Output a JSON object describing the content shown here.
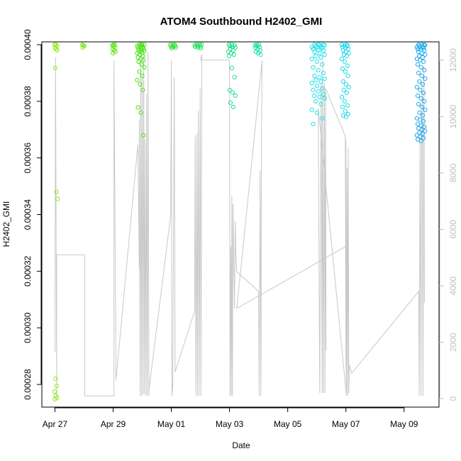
{
  "chart_data": {
    "type": "scatter",
    "title": "ATOM4 Southbound H2402_GMI",
    "xlabel": "Date",
    "ylabel": "H2402_GMI",
    "x_ticks": [
      {
        "day": 0,
        "label": "Apr 27"
      },
      {
        "day": 2,
        "label": "Apr 29"
      },
      {
        "day": 4,
        "label": "May 01"
      },
      {
        "day": 6,
        "label": "May 03"
      },
      {
        "day": 8,
        "label": "May 05"
      },
      {
        "day": 10,
        "label": "May 07"
      },
      {
        "day": 12,
        "label": "May 09"
      }
    ],
    "xlim_days": [
      -0.45,
      13.2
    ],
    "y_ticks": [
      "0.00028",
      "0.00030",
      "0.00032",
      "0.00034",
      "0.00036",
      "0.00038",
      "0.00040"
    ],
    "ylim": [
      0.000272,
      0.000401
    ],
    "y2_ticks": [
      "0",
      "2000",
      "4000",
      "6000",
      "8000",
      "10000",
      "12000"
    ],
    "y2lim": [
      -300,
      12650
    ],
    "y2_color": "#bfbfbf",
    "line_color": "#c8c8c8",
    "grid": false,
    "clusters": [
      {
        "day": 0.04,
        "spread": 0.05,
        "color": "#8fe81c",
        "values": [
          0.0004,
          0.0004,
          0.0003995,
          0.000399,
          0.0003985,
          0.000398,
          0.0003918,
          0.000348,
          0.0003455,
          0.000282,
          0.0002795,
          0.0002775,
          0.000276,
          0.0002752,
          0.0002748
        ]
      },
      {
        "day": 0.97,
        "spread": 0.04,
        "color": "#7ee41b",
        "values": [
          0.0004,
          0.0003998,
          0.0003995,
          0.000399
        ]
      },
      {
        "day": 2.02,
        "spread": 0.06,
        "color": "#66e41a",
        "values": [
          0.0004,
          0.0004,
          0.0003998,
          0.0003995,
          0.000399,
          0.0003985,
          0.000398,
          0.0003975,
          0.000397
        ]
      },
      {
        "day": 2.95,
        "spread": 0.12,
        "color": "#4fe21a",
        "values": [
          0.0004,
          0.0004,
          0.0004,
          0.0003998,
          0.0003996,
          0.0003994,
          0.0003992,
          0.000399,
          0.0003988,
          0.0003985,
          0.0003982,
          0.000398,
          0.0003978,
          0.0003975,
          0.0003972,
          0.000397,
          0.0003965,
          0.000396,
          0.0003955,
          0.000395,
          0.0003945,
          0.000394,
          0.000393,
          0.000392,
          0.0003905,
          0.000389,
          0.0003875,
          0.000386,
          0.000384,
          0.0003778,
          0.000376,
          0.000368
        ]
      },
      {
        "day": 4.05,
        "spread": 0.1,
        "color": "#2ee43a",
        "values": [
          0.0004,
          0.0004,
          0.0003998,
          0.0003996,
          0.0003994,
          0.0003992,
          0.000399,
          0.0003988
        ]
      },
      {
        "day": 4.92,
        "spread": 0.12,
        "color": "#22e45a",
        "values": [
          0.0004,
          0.0004,
          0.0004,
          0.0003998,
          0.0003996,
          0.0003994,
          0.0003992,
          0.000399,
          0.0003988
        ]
      },
      {
        "day": 6.08,
        "spread": 0.12,
        "color": "#1fe08e",
        "values": [
          0.0004,
          0.0004,
          0.0003998,
          0.0003995,
          0.0003992,
          0.000399,
          0.0003985,
          0.000398,
          0.0003975,
          0.000397,
          0.0003965,
          0.000396,
          0.0003918,
          0.0003885,
          0.000384,
          0.0003832,
          0.000382,
          0.0003795,
          0.000378
        ]
      },
      {
        "day": 6.97,
        "spread": 0.1,
        "color": "#1fe0b0",
        "values": [
          0.0004,
          0.0004,
          0.0003998,
          0.0003995,
          0.0003992,
          0.000399,
          0.0003985,
          0.000398,
          0.0003975,
          0.000397,
          0.0003965
        ]
      },
      {
        "day": 9.05,
        "spread": 0.22,
        "color": "#20e0e8",
        "values": [
          0.0004,
          0.0004,
          0.0004,
          0.0004,
          0.0003998,
          0.0003996,
          0.0003994,
          0.0003992,
          0.000399,
          0.0003988,
          0.0003985,
          0.0003982,
          0.000398,
          0.0003975,
          0.000397,
          0.0003965,
          0.000396,
          0.0003955,
          0.000395,
          0.000394,
          0.000393,
          0.000392,
          0.000391,
          0.00039,
          0.000389,
          0.0003885,
          0.000388,
          0.0003875,
          0.000387,
          0.0003865,
          0.0003855,
          0.0003845,
          0.000384,
          0.0003835,
          0.0003825,
          0.000382,
          0.0003815,
          0.000381,
          0.00038,
          0.000379,
          0.000377,
          0.000376,
          0.000374,
          0.000372
        ]
      },
      {
        "day": 9.98,
        "spread": 0.12,
        "color": "#20d8ec",
        "values": [
          0.0004,
          0.0004,
          0.0003998,
          0.0003995,
          0.0003992,
          0.000399,
          0.0003985,
          0.000398,
          0.0003975,
          0.000397,
          0.0003965,
          0.000396,
          0.000395,
          0.000394,
          0.0003925,
          0.0003915,
          0.0003905,
          0.000389,
          0.000387,
          0.000386,
          0.000385,
          0.000384,
          0.000383,
          0.0003815,
          0.00038,
          0.0003785,
          0.000378,
          0.0003765,
          0.0003755,
          0.000375,
          0.0003745
        ]
      },
      {
        "day": 12.58,
        "spread": 0.14,
        "color": "#20a8ec",
        "values": [
          0.0004,
          0.0004,
          0.0004,
          0.0003998,
          0.0003996,
          0.0003994,
          0.0003992,
          0.000399,
          0.0003988,
          0.0003985,
          0.0003982,
          0.000398,
          0.0003975,
          0.000397,
          0.0003965,
          0.000396,
          0.0003955,
          0.000395,
          0.0003945,
          0.000394,
          0.000393,
          0.000392,
          0.000391,
          0.00039,
          0.000389,
          0.000388,
          0.000387,
          0.000386,
          0.000385,
          0.000384,
          0.000383,
          0.000382,
          0.000381,
          0.00038,
          0.000379,
          0.000378,
          0.000377,
          0.000376,
          0.000375,
          0.000374,
          0.0003735,
          0.000373,
          0.000372,
          0.0003715,
          0.000371,
          0.0003705,
          0.00037,
          0.0003695,
          0.000369,
          0.0003685,
          0.000368,
          0.0003675,
          0.000367,
          0.0003665,
          0.000366
        ]
      }
    ],
    "secondary_line": [
      {
        "day": 0.0,
        "value": 1650
      },
      {
        "day": 0.02,
        "value": 12100
      },
      {
        "day": 0.06,
        "value": 100
      },
      {
        "day": 0.06,
        "value": 5100
      },
      {
        "day": 1.02,
        "value": 5100
      },
      {
        "day": 1.02,
        "value": 100
      },
      {
        "day": 2.03,
        "value": 100
      },
      {
        "day": 2.03,
        "value": 12000
      },
      {
        "day": 2.1,
        "value": 650
      },
      {
        "day": 2.85,
        "value": 9000
      },
      {
        "day": 2.9,
        "value": 4600
      },
      {
        "day": 2.9,
        "value": 9900
      },
      {
        "day": 2.93,
        "value": 100
      },
      {
        "day": 2.95,
        "value": 12200
      },
      {
        "day": 2.98,
        "value": 100
      },
      {
        "day": 3.0,
        "value": 11500
      },
      {
        "day": 3.03,
        "value": 150
      },
      {
        "day": 3.05,
        "value": 12300
      },
      {
        "day": 3.08,
        "value": 150
      },
      {
        "day": 3.1,
        "value": 9200
      },
      {
        "day": 3.13,
        "value": 100
      },
      {
        "day": 3.15,
        "value": 10800
      },
      {
        "day": 3.18,
        "value": 100
      },
      {
        "day": 3.2,
        "value": 12300
      },
      {
        "day": 3.23,
        "value": 100
      },
      {
        "day": 3.23,
        "value": 300
      },
      {
        "day": 3.98,
        "value": 6500
      },
      {
        "day": 4.0,
        "value": 12000
      },
      {
        "day": 4.02,
        "value": 100
      },
      {
        "day": 4.05,
        "value": 450
      },
      {
        "day": 4.1,
        "value": 11400
      },
      {
        "day": 4.13,
        "value": 950
      },
      {
        "day": 4.8,
        "value": 3100
      },
      {
        "day": 4.82,
        "value": 9300
      },
      {
        "day": 4.85,
        "value": 100
      },
      {
        "day": 4.88,
        "value": 9400
      },
      {
        "day": 4.9,
        "value": 100
      },
      {
        "day": 4.93,
        "value": 10200
      },
      {
        "day": 4.96,
        "value": 100
      },
      {
        "day": 4.99,
        "value": 11000
      },
      {
        "day": 5.02,
        "value": 100
      },
      {
        "day": 5.05,
        "value": 12200
      },
      {
        "day": 5.0,
        "value": 12000
      },
      {
        "day": 6.0,
        "value": 12000
      },
      {
        "day": 6.02,
        "value": 100
      },
      {
        "day": 6.04,
        "value": 5400
      },
      {
        "day": 6.06,
        "value": 100
      },
      {
        "day": 6.08,
        "value": 7200
      },
      {
        "day": 6.1,
        "value": 100
      },
      {
        "day": 6.12,
        "value": 6900
      },
      {
        "day": 6.14,
        "value": 5400
      },
      {
        "day": 6.17,
        "value": 3200
      },
      {
        "day": 6.2,
        "value": 6300
      },
      {
        "day": 6.22,
        "value": 5100
      },
      {
        "day": 6.25,
        "value": 4500
      },
      {
        "day": 7.0,
        "value": 3800
      },
      {
        "day": 7.02,
        "value": 100
      },
      {
        "day": 7.05,
        "value": 8100
      },
      {
        "day": 7.08,
        "value": 100
      },
      {
        "day": 7.1,
        "value": 9600
      },
      {
        "day": 7.12,
        "value": 12000
      },
      {
        "day": 6.25,
        "value": 3200
      },
      {
        "day": 10.0,
        "value": 5400
      },
      {
        "day": 10.0,
        "value": 9200
      },
      {
        "day": 10.02,
        "value": 100
      },
      {
        "day": 9.05,
        "value": 10300
      },
      {
        "day": 9.1,
        "value": 200
      },
      {
        "day": 9.15,
        "value": 11200
      },
      {
        "day": 9.18,
        "value": 200
      },
      {
        "day": 9.2,
        "value": 12000
      },
      {
        "day": 9.23,
        "value": 200
      },
      {
        "day": 9.26,
        "value": 11200
      },
      {
        "day": 9.28,
        "value": 200
      },
      {
        "day": 9.3,
        "value": 9900
      },
      {
        "day": 9.32,
        "value": 1700
      },
      {
        "day": 9.3,
        "value": 11000
      },
      {
        "day": 9.98,
        "value": 9300
      },
      {
        "day": 10.0,
        "value": 1600
      },
      {
        "day": 10.02,
        "value": 100
      },
      {
        "day": 10.04,
        "value": 8200
      },
      {
        "day": 10.06,
        "value": 100
      },
      {
        "day": 10.08,
        "value": 8900
      },
      {
        "day": 10.1,
        "value": 200
      },
      {
        "day": 10.12,
        "value": 1200
      },
      {
        "day": 10.2,
        "value": 900
      },
      {
        "day": 12.5,
        "value": 3800
      },
      {
        "day": 12.52,
        "value": 100
      },
      {
        "day": 12.55,
        "value": 9300
      },
      {
        "day": 12.58,
        "value": 100
      },
      {
        "day": 12.6,
        "value": 8400
      },
      {
        "day": 12.62,
        "value": 11200
      },
      {
        "day": 12.65,
        "value": 100
      },
      {
        "day": 12.68,
        "value": 11800
      },
      {
        "day": 12.7,
        "value": 3400
      }
    ]
  }
}
